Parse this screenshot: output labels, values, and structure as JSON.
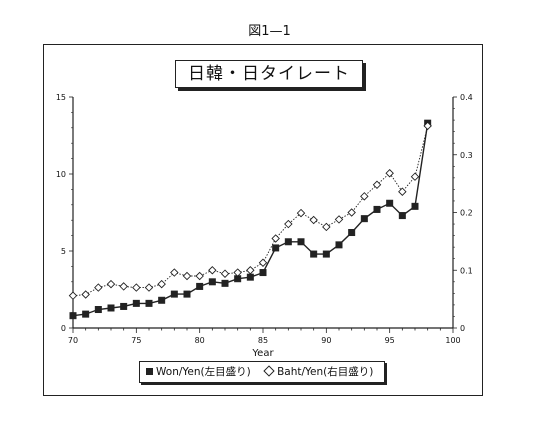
{
  "figure_label": "図1—1",
  "chart_title": "日韓・日タイレート",
  "legend": {
    "won_label": "Won/Yen(左目盛り)",
    "baht_label": "Baht/Yen(右目盛り)"
  },
  "colors": {
    "ink": "#222222",
    "marker_fill_open": "#ffffff"
  },
  "chart_data": {
    "type": "line",
    "title": "日韓・日タイレート",
    "xlabel": "Year",
    "x_ticks": [
      70,
      75,
      80,
      85,
      90,
      95,
      100
    ],
    "xlim": [
      70,
      100
    ],
    "y_left_ticks": [
      0,
      5,
      10,
      15
    ],
    "ylim_left": [
      0,
      15
    ],
    "y_right_ticks": [
      0,
      0.1,
      0.2,
      0.3,
      0.4
    ],
    "ylim_right": [
      0,
      0.4
    ],
    "grid": false,
    "legend_position": "bottom",
    "x": [
      70,
      71,
      72,
      73,
      74,
      75,
      76,
      77,
      78,
      79,
      80,
      81,
      82,
      83,
      84,
      85,
      86,
      87,
      88,
      89,
      90,
      91,
      92,
      93,
      94,
      95,
      96,
      97,
      98
    ],
    "series": [
      {
        "name": "Won/Yen(左目盛り)",
        "axis": "left",
        "marker": "filled-square",
        "line": "solid",
        "values": [
          0.8,
          0.9,
          1.2,
          1.3,
          1.4,
          1.6,
          1.6,
          1.8,
          2.2,
          2.2,
          2.7,
          3.0,
          2.9,
          3.2,
          3.3,
          3.6,
          5.2,
          5.6,
          5.6,
          4.8,
          4.8,
          5.4,
          6.2,
          7.1,
          7.7,
          8.1,
          7.3,
          7.9,
          13.3
        ]
      },
      {
        "name": "Baht/Yen(右目盛り)",
        "axis": "right",
        "marker": "open-diamond",
        "line": "dotted",
        "values": [
          0.056,
          0.058,
          0.07,
          0.076,
          0.072,
          0.07,
          0.07,
          0.076,
          0.096,
          0.09,
          0.09,
          0.1,
          0.094,
          0.096,
          0.1,
          0.113,
          0.155,
          0.18,
          0.199,
          0.187,
          0.175,
          0.188,
          0.2,
          0.228,
          0.248,
          0.268,
          0.236,
          0.262,
          0.35
        ]
      }
    ]
  }
}
